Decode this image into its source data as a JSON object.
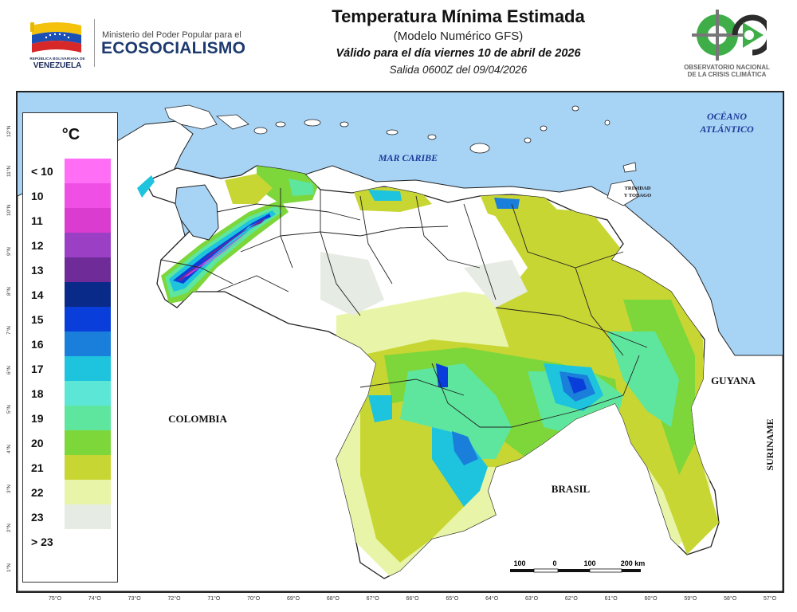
{
  "header": {
    "ministry_line": "Ministerio del Poder Popular para el",
    "ministry_name": "ECOSOCIALISMO",
    "republic_small": "REPÚBLICA BOLIVARIANA DE",
    "republic_big": "VENEZUELA",
    "title": "Temperatura Mínima Estimada",
    "subtitle": "(Modelo Numérico GFS)",
    "valid": "Válido para el día viernes 10 de abril de 2026",
    "output": "Salida 0600Z del 09/04/2026",
    "observatory_line1": "OBSERVATORIO NACIONAL",
    "observatory_line2": "DE LA CRISIS CLIMÁTICA"
  },
  "legend": {
    "unit": "°C",
    "items": [
      {
        "label": "< 10",
        "color": "#ff6ef5"
      },
      {
        "label": "10",
        "color": "#f04fe6"
      },
      {
        "label": "11",
        "color": "#d93ccf"
      },
      {
        "label": "12",
        "color": "#9b3fc4"
      },
      {
        "label": "13",
        "color": "#6f2c98"
      },
      {
        "label": "14",
        "color": "#0a2a8a"
      },
      {
        "label": "15",
        "color": "#0a3edb"
      },
      {
        "label": "16",
        "color": "#1a7edb"
      },
      {
        "label": "17",
        "color": "#1ec3de"
      },
      {
        "label": "18",
        "color": "#5be6d6"
      },
      {
        "label": "19",
        "color": "#5ee69e"
      },
      {
        "label": "20",
        "color": "#7dd63a"
      },
      {
        "label": "21",
        "color": "#c8d633"
      },
      {
        "label": "22",
        "color": "#e8f5a8"
      },
      {
        "label": "23",
        "color": "#e6ebe3"
      },
      {
        "label": "> 23",
        "color": "#ffffff"
      }
    ]
  },
  "map": {
    "sea_label": "MAR CARIBE",
    "ocean_label_1": "OCÉANO",
    "ocean_label_2": "ATLÁNTICO",
    "trinidad_label_1": "TRINIDAD",
    "trinidad_label_2": "Y TOBAGO",
    "colombia_label": "COLOMBIA",
    "brasil_label": "BRASIL",
    "guyana_label": "GUYANA",
    "suriname_label": "SURINAME",
    "scale_labels": [
      "100",
      "0",
      "100",
      "200 km"
    ],
    "sea_color": "#a7d3f5",
    "land_color": "#ffffff",
    "border_color": "#222222"
  },
  "axes": {
    "longitudes": [
      "75°O",
      "74°O",
      "73°O",
      "72°O",
      "71°O",
      "70°O",
      "69°O",
      "68°O",
      "67°O",
      "66°O",
      "65°O",
      "64°O",
      "63°O",
      "62°O",
      "61°O",
      "60°O",
      "59°O",
      "58°O",
      "57°O"
    ],
    "latitudes": [
      "12°N",
      "11°N",
      "10°N",
      "9°N",
      "8°N",
      "7°N",
      "6°N",
      "5°N",
      "4°N",
      "3°N",
      "2°N",
      "1°N"
    ]
  }
}
